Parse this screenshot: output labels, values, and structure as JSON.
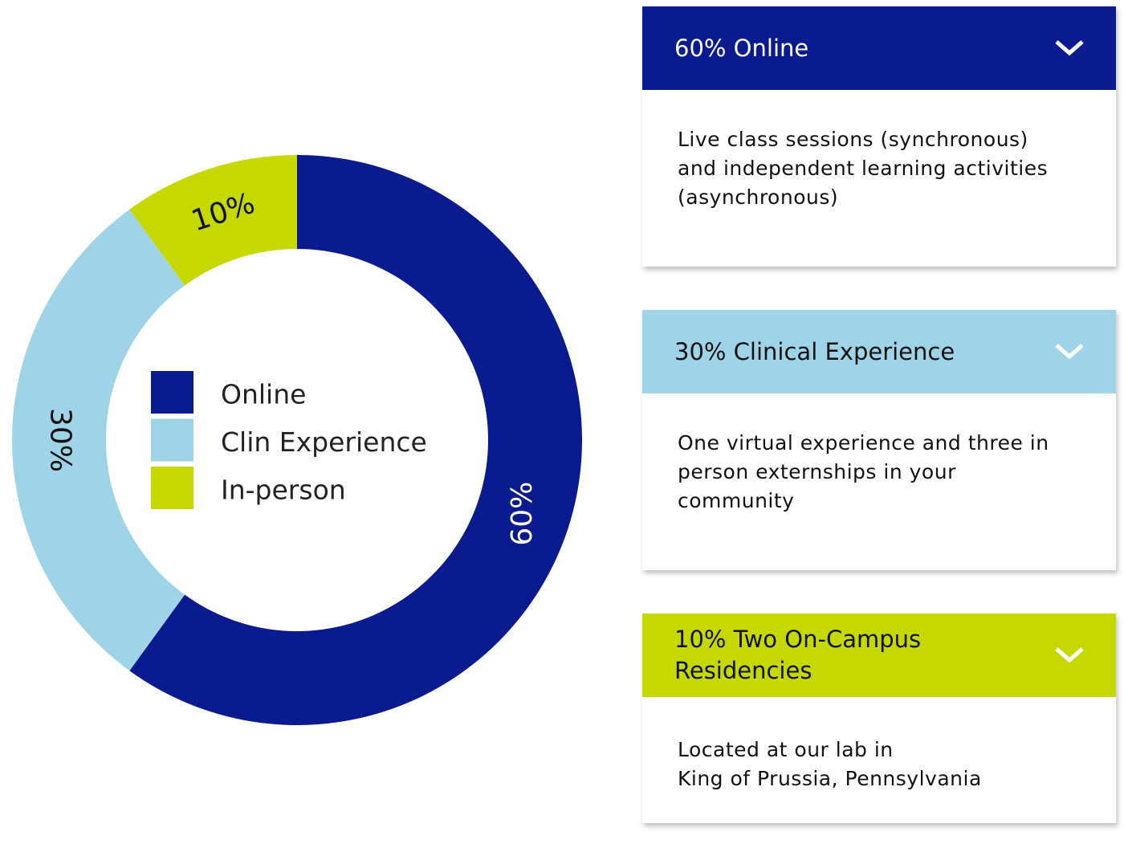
{
  "chart_data": {
    "type": "donut",
    "categories": [
      "Online",
      "Clin Experience",
      "In-person"
    ],
    "values": [
      60,
      30,
      10
    ],
    "value_labels": [
      "60%",
      "30%",
      "10%"
    ],
    "colors": [
      "#0a1a8f",
      "#9fd4e8",
      "#c5d900"
    ]
  },
  "panels": [
    {
      "header": [
        "60% Online"
      ],
      "body": [
        "Live class sessions (synchronous)",
        "and independent learning activities",
        "(asynchronous)"
      ]
    },
    {
      "header": [
        "30% Clinical Experience"
      ],
      "body": [
        "One virtual experience and three in",
        "person externships in your",
        "community"
      ]
    },
    {
      "header": [
        "10% Two On-Campus",
        "Residencies"
      ],
      "body": [
        "Located at our lab in",
        "King of Prussia, Pennsylvania"
      ]
    }
  ]
}
